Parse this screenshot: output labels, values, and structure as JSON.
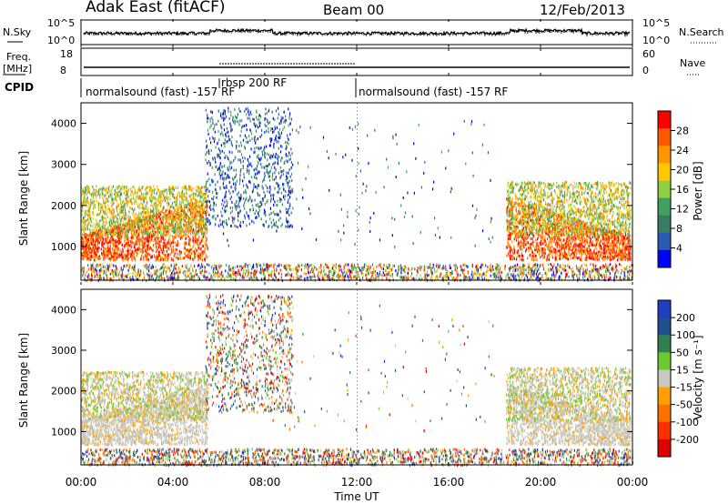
{
  "header": {
    "station": "Adak East (fitACF)",
    "beam": "Beam 00",
    "date": "12/Feb/2013"
  },
  "top_panels": {
    "nsky_label": "N.Sky",
    "nsearch_label": "N.Search",
    "freq_label_1": "Freq.",
    "freq_label_2": "[MHz]",
    "nave_label": "Nave",
    "cpid_label": "CPID",
    "noise_ticks_left": [
      "10^5",
      "10^0"
    ],
    "noise_ticks_right": [
      "10^5",
      "10^0"
    ],
    "freq_ticks": [
      "18",
      "8"
    ],
    "nave_ticks": [
      "60",
      "0"
    ]
  },
  "cpid_segments": [
    {
      "label": "normalsound (fast) -157 RF",
      "start_h": 0
    },
    {
      "label": "rbsp 200 RF",
      "start_h": 6
    },
    {
      "label": "normalsound (fast) -157 RF",
      "start_h": 12
    }
  ],
  "axes": {
    "y_label": "Slant Range [km]",
    "y_ticks": [
      "1000",
      "2000",
      "3000",
      "4000"
    ],
    "x_ticks": [
      "00:00",
      "04:00",
      "08:00",
      "12:00",
      "16:00",
      "20:00",
      "00:00"
    ],
    "x_label": "Time UT"
  },
  "power_colorbar": {
    "label": "Power [dB]",
    "ticks": [
      "28",
      "24",
      "20",
      "16",
      "12",
      "8",
      "4"
    ],
    "colors": [
      "#ff0000",
      "#ff5a00",
      "#ff9600",
      "#ffc800",
      "#90d040",
      "#40a060",
      "#3c7c64",
      "#2a5ab4",
      "#0000ff"
    ]
  },
  "velocity_colorbar": {
    "label": "Velocity [m s⁻¹]",
    "ticks": [
      "200",
      "100",
      "50",
      "15",
      "-15",
      "-50",
      "-100",
      "-200"
    ],
    "colors": [
      "#2040c0",
      "#205090",
      "#308050",
      "#70c830",
      "#c8c8c0",
      "#ffa000",
      "#ff7000",
      "#ff3000",
      "#e00000"
    ]
  },
  "chart_data": {
    "type": "heatmap",
    "title": "Adak East (fitACF) Beam 00 12/Feb/2013",
    "xlabel": "Time UT",
    "ylabel": "Slant Range [km]",
    "xlim": [
      "00:00",
      "24:00"
    ],
    "ylim": [
      180,
      4500
    ],
    "panels": [
      {
        "name": "Power [dB]",
        "clim": [
          0,
          30
        ]
      },
      {
        "name": "Velocity [m s⁻¹]",
        "clim": [
          -200,
          200
        ]
      }
    ],
    "features": [
      {
        "time_range": [
          "00:00",
          "05:30"
        ],
        "range_km": [
          700,
          2500
        ],
        "power_dB": 24
      },
      {
        "time_range": [
          "06:00",
          "09:00"
        ],
        "range_km": [
          1500,
          4400
        ],
        "power_dB": 6
      },
      {
        "time_range": [
          "18:30",
          "24:00"
        ],
        "range_km": [
          700,
          2500
        ],
        "power_dB": 24
      }
    ]
  }
}
